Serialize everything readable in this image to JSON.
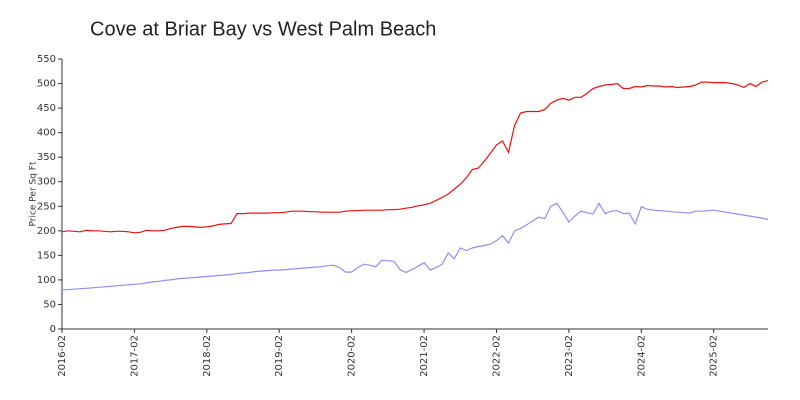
{
  "chart_data": {
    "type": "line",
    "title": "Cove at Briar Bay vs West Palm Beach",
    "ylabel": "Price Per Sq Ft",
    "x": [
      "2016-02",
      "2016-03",
      "2016-04",
      "2016-05",
      "2016-06",
      "2016-07",
      "2016-08",
      "2016-09",
      "2016-10",
      "2016-11",
      "2016-12",
      "2017-01",
      "2017-02",
      "2017-03",
      "2017-04",
      "2017-05",
      "2017-06",
      "2017-07",
      "2017-08",
      "2017-09",
      "2017-10",
      "2017-11",
      "2017-12",
      "2018-01",
      "2018-02",
      "2018-03",
      "2018-04",
      "2018-05",
      "2018-06",
      "2018-07",
      "2018-08",
      "2018-09",
      "2018-10",
      "2018-11",
      "2018-12",
      "2019-01",
      "2019-02",
      "2019-03",
      "2019-04",
      "2019-05",
      "2019-06",
      "2019-07",
      "2019-08",
      "2019-09",
      "2019-10",
      "2019-11",
      "2019-12",
      "2020-01",
      "2020-02",
      "2020-03",
      "2020-04",
      "2020-05",
      "2020-06",
      "2020-07",
      "2020-08",
      "2020-09",
      "2020-10",
      "2020-11",
      "2020-12",
      "2021-01",
      "2021-02",
      "2021-03",
      "2021-04",
      "2021-05",
      "2021-06",
      "2021-07",
      "2021-08",
      "2021-09",
      "2021-10",
      "2021-11",
      "2021-12",
      "2022-01",
      "2022-02",
      "2022-03",
      "2022-04",
      "2022-05",
      "2022-06",
      "2022-07",
      "2022-08",
      "2022-09",
      "2022-10",
      "2022-11",
      "2022-12",
      "2023-01",
      "2023-02",
      "2023-03",
      "2023-04",
      "2023-05",
      "2023-06",
      "2023-07",
      "2023-08",
      "2023-09",
      "2023-10",
      "2023-11",
      "2023-12",
      "2024-01",
      "2024-02",
      "2024-03",
      "2024-04",
      "2024-05",
      "2024-06",
      "2024-07",
      "2024-08",
      "2024-09",
      "2024-10",
      "2024-11",
      "2024-12",
      "2025-01",
      "2025-02",
      "2025-03",
      "2025-04",
      "2025-05",
      "2025-06",
      "2025-07",
      "2025-08",
      "2025-09",
      "2025-10",
      "2025-11"
    ],
    "series": [
      {
        "color": "#ee1111",
        "values": [
          198,
          200,
          199,
          198,
          201,
          200,
          200,
          199,
          198,
          199,
          199,
          198,
          196,
          197,
          201,
          200,
          200,
          201,
          205,
          207,
          209,
          209,
          208,
          207,
          208,
          210,
          213,
          214,
          215,
          235,
          235,
          236,
          236,
          236,
          236,
          237,
          237,
          238,
          240,
          240,
          240,
          239,
          239,
          238,
          238,
          238,
          238,
          240,
          241,
          241,
          242,
          242,
          242,
          242,
          243,
          243,
          244,
          246,
          248,
          251,
          253,
          256,
          262,
          268,
          275,
          285,
          295,
          308,
          325,
          328,
          342,
          358,
          375,
          383,
          360,
          415,
          440,
          443,
          443,
          443,
          447,
          460,
          466,
          470,
          466,
          472,
          472,
          480,
          490,
          494,
          497,
          498,
          500,
          490,
          490,
          494,
          493,
          496,
          495,
          495,
          493,
          494,
          492,
          493,
          494,
          497,
          503,
          503,
          502,
          502,
          502,
          500,
          497,
          492,
          500,
          494,
          503,
          506
        ]
      },
      {
        "color": "#8f8ff5",
        "values": [
          80,
          80,
          81,
          82,
          83,
          84,
          85,
          86,
          87,
          88,
          89,
          90,
          91,
          92,
          94,
          96,
          97,
          99,
          100,
          102,
          103,
          104,
          105,
          106,
          107,
          108,
          109,
          110,
          111,
          113,
          114,
          115,
          117,
          118,
          119,
          120,
          120,
          121,
          122,
          123,
          124,
          125,
          126,
          127,
          129,
          130,
          125,
          116,
          116,
          125,
          132,
          130,
          127,
          140,
          139,
          138,
          121,
          115,
          121,
          128,
          135,
          120,
          125,
          132,
          155,
          143,
          165,
          160,
          165,
          168,
          170,
          173,
          180,
          190,
          175,
          200,
          205,
          212,
          220,
          228,
          225,
          250,
          256,
          238,
          218,
          230,
          240,
          237,
          234,
          256,
          235,
          240,
          241,
          235,
          236,
          214,
          249,
          244,
          242,
          241,
          240,
          239,
          238,
          237,
          236,
          240,
          240,
          241,
          242,
          240,
          238,
          236,
          234,
          232,
          230,
          228,
          226,
          223
        ]
      }
    ],
    "xlim": [
      "2016-02",
      "2025-11"
    ],
    "xticks": [
      "2016-02",
      "2017-02",
      "2018-02",
      "2019-02",
      "2020-02",
      "2021-02",
      "2022-02",
      "2023-02",
      "2024-02",
      "2025-02"
    ],
    "ylim": [
      0,
      550
    ],
    "yticks": [
      0,
      50,
      100,
      150,
      200,
      250,
      300,
      350,
      400,
      450,
      500,
      550
    ]
  }
}
